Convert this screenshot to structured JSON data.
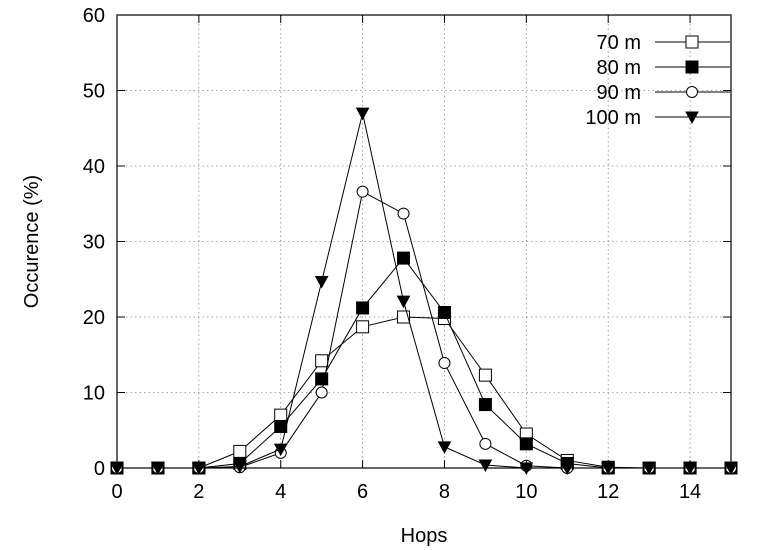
{
  "chart_data": {
    "type": "line",
    "title": "",
    "xlabel": "Hops",
    "ylabel": "Occurence (%)",
    "xlim": [
      0,
      15
    ],
    "ylim": [
      0,
      60
    ],
    "xticks": [
      "0",
      "2",
      "4",
      "6",
      "8",
      "10",
      "12",
      "14"
    ],
    "yticks": [
      "0",
      "10",
      "20",
      "30",
      "40",
      "50",
      "60"
    ],
    "grid": true,
    "legend_position": "top-right",
    "x": [
      0,
      1,
      2,
      3,
      4,
      5,
      6,
      7,
      8,
      9,
      10,
      11,
      12,
      13,
      14,
      15
    ],
    "series": [
      {
        "name": "70 m",
        "marker": "open-square",
        "values": [
          0,
          0,
          0,
          2.2,
          7.0,
          14.2,
          18.7,
          20.0,
          19.8,
          12.3,
          4.5,
          1.0,
          0.1,
          0,
          0,
          0
        ]
      },
      {
        "name": "80 m",
        "marker": "filled-square",
        "values": [
          0,
          0,
          0,
          0.6,
          5.5,
          11.8,
          21.2,
          27.8,
          20.6,
          8.4,
          3.2,
          0.6,
          0,
          0,
          0,
          0
        ]
      },
      {
        "name": "90 m",
        "marker": "open-circle",
        "values": [
          0,
          0,
          0,
          0.1,
          2.0,
          10.0,
          36.6,
          33.7,
          13.9,
          3.2,
          0.3,
          0.0,
          0,
          0,
          0,
          0
        ]
      },
      {
        "name": "100 m",
        "marker": "filled-triangle-down",
        "values": [
          0,
          0,
          0,
          0.2,
          2.5,
          24.7,
          47.0,
          22.1,
          2.8,
          0.4,
          0.0,
          0.0,
          0,
          0,
          0,
          0
        ]
      }
    ]
  }
}
